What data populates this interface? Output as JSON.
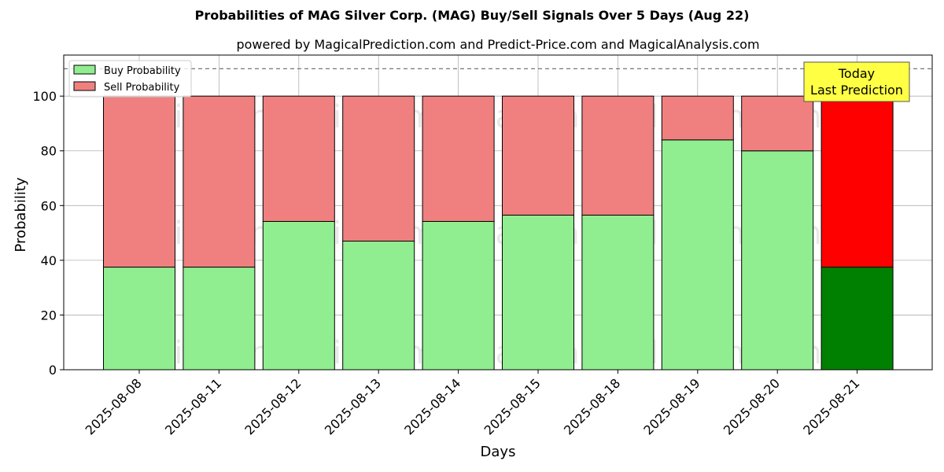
{
  "chart_data": {
    "type": "bar",
    "stacked": true,
    "title": "Probabilities of MAG Silver Corp. (MAG) Buy/Sell Signals Over 5 Days (Aug 22)",
    "subtitle": "powered by MagicalPrediction.com and Predict-Price.com and MagicalAnalysis.com",
    "xlabel": "Days",
    "ylabel": "Probability",
    "ylim": [
      0,
      115
    ],
    "yticks": [
      0,
      20,
      40,
      60,
      80,
      100
    ],
    "grid": true,
    "legend_position": "top-left",
    "reference_line": 110,
    "categories": [
      "2025-08-08",
      "2025-08-11",
      "2025-08-12",
      "2025-08-13",
      "2025-08-14",
      "2025-08-15",
      "2025-08-18",
      "2025-08-19",
      "2025-08-20",
      "2025-08-21"
    ],
    "series": [
      {
        "name": "Buy Probability",
        "color": "#90ee90",
        "highlight_color": "#008000",
        "values": [
          37.5,
          37.5,
          54.2,
          47.0,
          54.2,
          56.5,
          56.5,
          84.0,
          80.0,
          37.5
        ]
      },
      {
        "name": "Sell Probability",
        "color": "#f08080",
        "highlight_color": "#ff0000",
        "values": [
          62.5,
          62.5,
          45.8,
          53.0,
          45.8,
          43.5,
          43.5,
          16.0,
          20.0,
          62.5
        ]
      }
    ],
    "highlight_index": 9,
    "annotation": {
      "line1": "Today",
      "line2": "Last Prediction",
      "color": "#ffff44"
    },
    "watermarks": [
      "MagicalAnalysis.com",
      "MagicalPrediction.com",
      "MagicalAnalysis.com",
      "MagicalPrediction.com",
      "MagicalAnalysis.com",
      "MagicalPrediction.com"
    ]
  }
}
